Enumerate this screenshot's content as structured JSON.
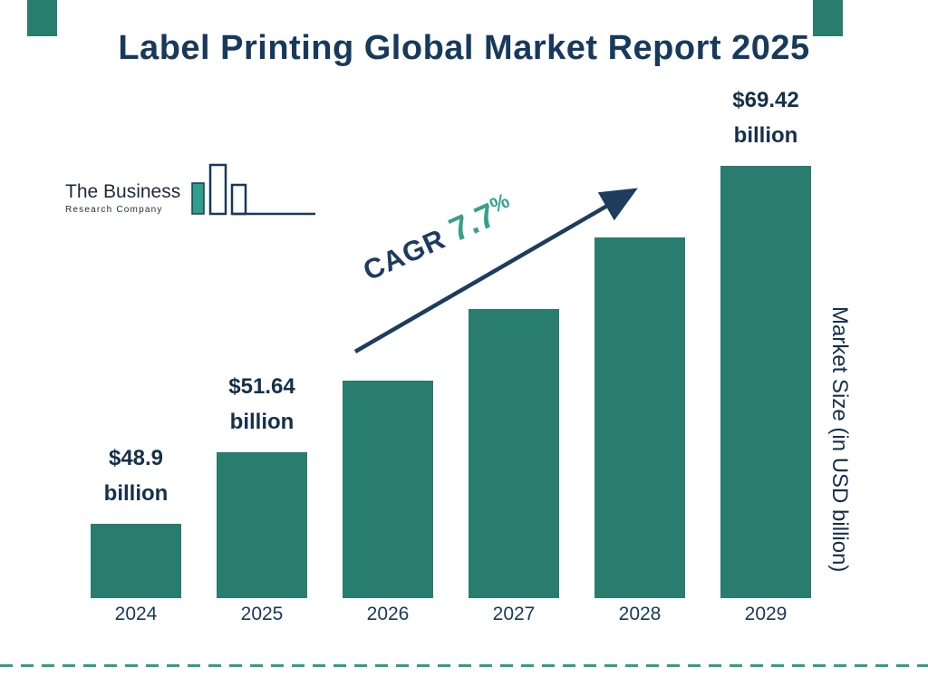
{
  "page": {
    "title": "Label Printing Global Market Report 2025"
  },
  "logo": {
    "line1": "The Business",
    "line2": "Research Company"
  },
  "chart_data": {
    "type": "bar",
    "title": "Label Printing Global Market Report 2025",
    "categories": [
      "2024",
      "2025",
      "2026",
      "2027",
      "2028",
      "2029"
    ],
    "values": [
      48.9,
      51.64,
      55.62,
      59.9,
      64.51,
      69.42
    ],
    "value_labels": [
      "$48.9 billion",
      "$51.64 billion",
      null,
      null,
      null,
      "$69.42 billion"
    ],
    "xlabel": "",
    "ylabel": "Market Size (in USD billion)",
    "legend": "none",
    "grid": "off",
    "bar_color": "#287d6f",
    "annotation": {
      "label": "CAGR",
      "value": "7.7",
      "suffix": "%"
    }
  },
  "colors": {
    "navy": "#17395c",
    "label_navy": "#14304a",
    "teal": "#287d6f",
    "accent_teal": "#38a08c"
  }
}
